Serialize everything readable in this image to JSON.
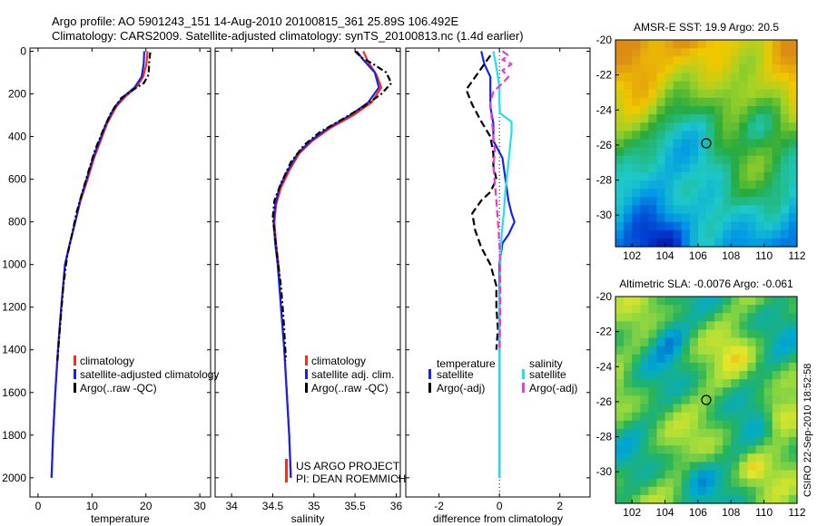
{
  "header": {
    "line1": "Argo profile: AO 5901243_151 14-Aug-2010 20100815_361 25.89S 106.492E",
    "line2": "Climatology: CARS2009. Satellite-adjusted climatology: synTS_20100813.nc (1.4d earlier)"
  },
  "footer": {
    "stamp": "CSIRO 22-Sep-2010 18:52:58",
    "project": "US ARGO PROJECT",
    "pi": "PI: DEAN ROEMMICH"
  },
  "colors": {
    "climatology": "#ff2a1a",
    "satellite": "#1424e8",
    "argo": "#000000",
    "satellite_salinity": "#22e0f0",
    "argo_salinity": "#e53bd8"
  },
  "chart_data": [
    {
      "type": "line",
      "id": "temperature",
      "xlabel": "temperature",
      "xlim": [
        -1.5,
        32
      ],
      "xticks": [
        0,
        10,
        20,
        30
      ],
      "ylim": [
        2090,
        -15
      ],
      "yticks": [
        0,
        200,
        400,
        600,
        800,
        1000,
        1200,
        1400,
        1600,
        1800,
        2000
      ],
      "legend": [
        "climatology",
        "satellite-adjusted climatology",
        "Argo(..raw -QC)"
      ],
      "series": [
        {
          "name": "climatology",
          "color": "#ff2a1a",
          "dash": "",
          "points": [
            [
              20.3,
              0
            ],
            [
              20.1,
              60
            ],
            [
              19.5,
              120
            ],
            [
              18.2,
              170
            ],
            [
              16.3,
              210
            ],
            [
              14.5,
              260
            ],
            [
              12.8,
              340
            ],
            [
              11.6,
              420
            ],
            [
              10.4,
              500
            ],
            [
              9.2,
              600
            ],
            [
              7.9,
              700
            ],
            [
              6.9,
              800
            ],
            [
              5.9,
              900
            ],
            [
              5.0,
              1000
            ],
            [
              4.3,
              1200
            ],
            [
              3.7,
              1400
            ],
            [
              3.2,
              1600
            ],
            [
              2.8,
              1800
            ],
            [
              2.5,
              2000
            ]
          ]
        },
        {
          "name": "satellite-adjusted climatology",
          "color": "#1424e8",
          "dash": "",
          "points": [
            [
              19.7,
              0
            ],
            [
              19.6,
              60
            ],
            [
              19.2,
              120
            ],
            [
              17.9,
              170
            ],
            [
              16.0,
              210
            ],
            [
              14.2,
              260
            ],
            [
              12.6,
              340
            ],
            [
              11.4,
              420
            ],
            [
              10.2,
              500
            ],
            [
              9.0,
              600
            ],
            [
              7.8,
              700
            ],
            [
              6.9,
              800
            ],
            [
              5.9,
              900
            ],
            [
              5.0,
              1000
            ],
            [
              4.3,
              1200
            ],
            [
              3.7,
              1400
            ],
            [
              3.2,
              1600
            ],
            [
              2.8,
              1800
            ],
            [
              2.5,
              2000
            ]
          ]
        },
        {
          "name": "Argo(..raw -QC)",
          "color": "#000000",
          "dash": "7 3 2 3",
          "points": [
            [
              20.8,
              5
            ],
            [
              20.6,
              50
            ],
            [
              20.5,
              110
            ],
            [
              19.6,
              150
            ],
            [
              17.6,
              180
            ],
            [
              15.4,
              220
            ],
            [
              13.5,
              290
            ],
            [
              11.9,
              380
            ],
            [
              10.6,
              460
            ],
            [
              9.4,
              560
            ],
            [
              8.0,
              680
            ],
            [
              7.1,
              760
            ],
            [
              6.3,
              860
            ],
            [
              5.4,
              960
            ],
            [
              4.7,
              1100
            ],
            [
              4.1,
              1280
            ],
            [
              3.6,
              1450
            ]
          ]
        }
      ]
    },
    {
      "type": "line",
      "id": "salinity",
      "xlabel": "salinity",
      "xlim": [
        33.8,
        36.05
      ],
      "xticks": [
        34,
        34.5,
        35,
        35.5,
        36
      ],
      "ylim": [
        2090,
        -15
      ],
      "legend": [
        "climatology",
        "satellite adj. clim.",
        "Argo(..raw -QC)"
      ],
      "series": [
        {
          "name": "climatology",
          "color": "#ff2a1a",
          "dash": "",
          "points": [
            [
              35.6,
              0
            ],
            [
              35.66,
              50
            ],
            [
              35.76,
              110
            ],
            [
              35.82,
              170
            ],
            [
              35.7,
              240
            ],
            [
              35.48,
              300
            ],
            [
              35.2,
              360
            ],
            [
              34.98,
              420
            ],
            [
              34.82,
              480
            ],
            [
              34.7,
              560
            ],
            [
              34.6,
              640
            ],
            [
              34.54,
              720
            ],
            [
              34.52,
              800
            ],
            [
              34.54,
              900
            ],
            [
              34.57,
              1000
            ],
            [
              34.6,
              1200
            ],
            [
              34.64,
              1400
            ],
            [
              34.67,
              1600
            ],
            [
              34.7,
              1800
            ],
            [
              34.72,
              2000
            ]
          ]
        },
        {
          "name": "satellite adj. clim.",
          "color": "#1424e8",
          "dash": "",
          "points": [
            [
              35.52,
              0
            ],
            [
              35.6,
              40
            ],
            [
              35.74,
              100
            ],
            [
              35.79,
              170
            ],
            [
              35.66,
              240
            ],
            [
              35.44,
              300
            ],
            [
              35.17,
              360
            ],
            [
              34.96,
              420
            ],
            [
              34.8,
              480
            ],
            [
              34.68,
              560
            ],
            [
              34.58,
              640
            ],
            [
              34.53,
              720
            ],
            [
              34.51,
              800
            ],
            [
              34.53,
              900
            ],
            [
              34.56,
              1000
            ],
            [
              34.6,
              1200
            ],
            [
              34.64,
              1400
            ],
            [
              34.67,
              1600
            ],
            [
              34.7,
              1800
            ],
            [
              34.72,
              2000
            ]
          ]
        },
        {
          "name": "Argo(..raw -QC)",
          "color": "#000000",
          "dash": "7 3 2 3",
          "points": [
            [
              35.5,
              0
            ],
            [
              35.58,
              30
            ],
            [
              35.72,
              60
            ],
            [
              35.88,
              100
            ],
            [
              35.94,
              150
            ],
            [
              35.82,
              200
            ],
            [
              35.6,
              260
            ],
            [
              35.34,
              320
            ],
            [
              35.07,
              380
            ],
            [
              34.88,
              440
            ],
            [
              34.72,
              520
            ],
            [
              34.6,
              620
            ],
            [
              34.52,
              700
            ],
            [
              34.5,
              780
            ],
            [
              34.53,
              880
            ],
            [
              34.56,
              980
            ],
            [
              34.6,
              1100
            ],
            [
              34.63,
              1250
            ],
            [
              34.66,
              1450
            ]
          ]
        }
      ]
    },
    {
      "type": "line",
      "id": "difference",
      "xlabel": "difference from climatology",
      "xlim": [
        -3.1,
        3.0
      ],
      "xticks": [
        -2,
        0,
        2
      ],
      "ylim": [
        2090,
        -15
      ],
      "legend": [
        "temperature",
        "satellite",
        "Argo(-adj)",
        "salinity",
        "satellite",
        "Argo(-adj)"
      ],
      "series": [
        {
          "name": "temperature satellite",
          "color": "#1424e8",
          "dash": "",
          "points": [
            [
              -0.6,
              0
            ],
            [
              -0.5,
              60
            ],
            [
              -0.3,
              120
            ],
            [
              -0.3,
              170
            ],
            [
              -0.3,
              210
            ],
            [
              -0.3,
              260
            ],
            [
              -0.2,
              340
            ],
            [
              -0.2,
              420
            ],
            [
              0.1,
              500
            ],
            [
              0.2,
              600
            ],
            [
              0.3,
              700
            ],
            [
              0.4,
              760
            ],
            [
              0.5,
              800
            ],
            [
              0.3,
              860
            ],
            [
              0.1,
              900
            ],
            [
              0,
              1000
            ],
            [
              0,
              1200
            ],
            [
              0,
              1400
            ],
            [
              0,
              1600
            ],
            [
              0,
              1800
            ],
            [
              0,
              2000
            ]
          ]
        },
        {
          "name": "temperature Argo(-adj)",
          "color": "#000000",
          "dash": "8 4",
          "points": [
            [
              -0.3,
              20
            ],
            [
              -0.5,
              60
            ],
            [
              -0.7,
              100
            ],
            [
              -1.1,
              180
            ],
            [
              -0.9,
              250
            ],
            [
              -0.6,
              330
            ],
            [
              -0.3,
              400
            ],
            [
              -0.2,
              480
            ],
            [
              -0.2,
              540
            ],
            [
              -0.1,
              600
            ],
            [
              -0.3,
              660
            ],
            [
              -0.6,
              700
            ],
            [
              -0.9,
              760
            ],
            [
              -0.8,
              840
            ],
            [
              -0.6,
              920
            ],
            [
              -0.3,
              1000
            ],
            [
              -0.1,
              1100
            ],
            [
              -0.1,
              1200
            ],
            [
              -0.05,
              1300
            ],
            [
              -0.1,
              1400
            ]
          ]
        },
        {
          "name": "salinity satellite",
          "color": "#22e0f0",
          "dash": "",
          "points": [
            [
              -0.2,
              0
            ],
            [
              -0.12,
              60
            ],
            [
              -0.05,
              120
            ],
            [
              0,
              170
            ],
            [
              0,
              210
            ],
            [
              0,
              240
            ],
            [
              0.02,
              290
            ],
            [
              0.2,
              310
            ],
            [
              0.4,
              330
            ],
            [
              0.4,
              380
            ],
            [
              0.35,
              450
            ],
            [
              0.28,
              550
            ],
            [
              0.2,
              650
            ],
            [
              0.15,
              750
            ],
            [
              0.08,
              850
            ],
            [
              0.04,
              950
            ],
            [
              0.02,
              1050
            ],
            [
              0,
              1200
            ],
            [
              0,
              1400
            ],
            [
              0,
              1600
            ],
            [
              0,
              1800
            ],
            [
              0,
              2000
            ]
          ]
        },
        {
          "name": "salinity Argo(-adj)",
          "color": "#e53bd8",
          "dash": "8 4",
          "points": [
            [
              0.1,
              0
            ],
            [
              0.3,
              20
            ],
            [
              0.1,
              40
            ],
            [
              0.4,
              60
            ],
            [
              0.1,
              90
            ],
            [
              0.3,
              120
            ],
            [
              0.1,
              150
            ],
            [
              -0.2,
              190
            ],
            [
              -0.3,
              240
            ],
            [
              -0.25,
              320
            ],
            [
              -0.2,
              400
            ],
            [
              -0.15,
              470
            ],
            [
              -0.2,
              540
            ],
            [
              -0.15,
              620
            ],
            [
              -0.1,
              700
            ],
            [
              -0.05,
              800
            ],
            [
              0,
              900
            ],
            [
              0.02,
              1000
            ],
            [
              0.03,
              1100
            ],
            [
              0.03,
              1200
            ],
            [
              0.02,
              1300
            ],
            [
              0.01,
              1400
            ]
          ]
        }
      ]
    },
    {
      "type": "heatmap",
      "id": "sst",
      "title": "AMSR-E SST: 19.9 Argo: 20.5",
      "xlim": [
        101,
        112
      ],
      "ylim": [
        -31.8,
        -20
      ],
      "xticks": [
        102,
        104,
        106,
        108,
        110,
        112
      ],
      "yticks": [
        -20,
        -22,
        -24,
        -26,
        -28,
        -30
      ],
      "marker": [
        106.5,
        -25.9
      ]
    },
    {
      "type": "heatmap",
      "id": "sla",
      "title": "Altimetric SLA: -0.0076 Argo: -0.061",
      "xlim": [
        101,
        112
      ],
      "ylim": [
        -31.8,
        -20
      ],
      "xticks": [
        102,
        104,
        106,
        108,
        110,
        112
      ],
      "yticks": [
        -20,
        -22,
        -24,
        -26,
        -28,
        -30
      ],
      "marker": [
        106.5,
        -25.9
      ]
    }
  ]
}
